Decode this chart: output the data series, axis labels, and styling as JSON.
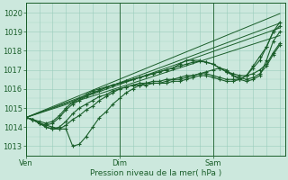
{
  "xlabel": "Pression niveau de la mer( hPa )",
  "bg_color": "#cce8dd",
  "grid_color": "#99ccbb",
  "line_color": "#1a5e2a",
  "ylim": [
    1012.5,
    1020.5
  ],
  "xtick_labels": [
    "Ven",
    "Dim",
    "Sam"
  ],
  "xtick_positions": [
    0,
    56,
    112
  ],
  "xlim": [
    0,
    155
  ],
  "yticks": [
    1013,
    1014,
    1015,
    1016,
    1017,
    1018,
    1019,
    1020
  ],
  "series": [
    {
      "x": [
        0,
        4,
        8,
        12,
        16,
        20,
        24,
        28,
        32,
        36,
        40,
        44,
        48,
        52,
        56,
        60,
        64,
        68,
        72,
        76,
        80,
        84,
        88,
        92,
        96,
        100,
        104,
        108,
        112,
        116,
        120,
        124,
        128,
        132,
        136,
        140,
        144,
        148,
        152
      ],
      "y": [
        1014.5,
        1014.4,
        1014.2,
        1014.1,
        1014.0,
        1013.9,
        1013.9,
        1013.0,
        1013.1,
        1013.5,
        1014.0,
        1014.5,
        1014.8,
        1015.2,
        1015.5,
        1015.8,
        1016.0,
        1016.2,
        1016.3,
        1016.4,
        1016.4,
        1016.5,
        1016.5,
        1016.5,
        1016.6,
        1016.7,
        1016.8,
        1016.9,
        1017.0,
        1017.1,
        1017.0,
        1016.7,
        1016.5,
        1016.4,
        1016.5,
        1016.7,
        1017.5,
        1018.5,
        1019.0
      ]
    },
    {
      "x": [
        0,
        4,
        8,
        12,
        16,
        20,
        24,
        28,
        32,
        36,
        40,
        44,
        48,
        52,
        56,
        60,
        64,
        68,
        72,
        76,
        80,
        84,
        88,
        92,
        96,
        100,
        104,
        108,
        112,
        116,
        120,
        124,
        128,
        132,
        136,
        140,
        144,
        148,
        152
      ],
      "y": [
        1014.5,
        1014.4,
        1014.2,
        1014.0,
        1013.9,
        1013.9,
        1014.1,
        1014.4,
        1014.6,
        1014.9,
        1015.1,
        1015.4,
        1015.6,
        1015.8,
        1016.0,
        1016.1,
        1016.2,
        1016.3,
        1016.3,
        1016.3,
        1016.3,
        1016.3,
        1016.4,
        1016.4,
        1016.5,
        1016.6,
        1016.7,
        1016.7,
        1016.6,
        1016.5,
        1016.4,
        1016.4,
        1016.5,
        1016.7,
        1017.1,
        1017.5,
        1018.2,
        1019.0,
        1019.5
      ]
    },
    {
      "x": [
        0,
        4,
        8,
        12,
        16,
        20,
        24,
        28,
        32,
        36,
        40,
        44,
        48,
        52,
        56,
        60,
        64,
        68,
        72,
        76,
        80,
        84,
        88,
        92,
        96,
        100,
        104,
        108,
        112,
        116,
        120,
        124,
        128,
        132,
        136,
        140,
        144,
        148,
        152
      ],
      "y": [
        1014.5,
        1014.4,
        1014.2,
        1014.0,
        1013.9,
        1014.0,
        1014.3,
        1014.7,
        1015.0,
        1015.2,
        1015.4,
        1015.6,
        1015.7,
        1015.9,
        1016.0,
        1016.1,
        1016.2,
        1016.2,
        1016.2,
        1016.3,
        1016.3,
        1016.4,
        1016.5,
        1016.6,
        1016.7,
        1016.7,
        1016.8,
        1016.8,
        1016.7,
        1016.6,
        1016.5,
        1016.5,
        1016.5,
        1016.7,
        1017.2,
        1017.7,
        1018.2,
        1019.0,
        1019.3
      ]
    },
    {
      "x": [
        0,
        4,
        8,
        12,
        16,
        20,
        24,
        28,
        32,
        36,
        40,
        44,
        48,
        52,
        56,
        60,
        64,
        68,
        72,
        76,
        80,
        84,
        88,
        92,
        96,
        100,
        104,
        108,
        112,
        116,
        120,
        124,
        128,
        132,
        136,
        140,
        144,
        148,
        152
      ],
      "y": [
        1014.5,
        1014.4,
        1014.2,
        1014.1,
        1014.2,
        1014.5,
        1014.9,
        1015.2,
        1015.4,
        1015.6,
        1015.8,
        1015.9,
        1016.1,
        1016.2,
        1016.3,
        1016.4,
        1016.5,
        1016.6,
        1016.7,
        1016.8,
        1016.9,
        1017.0,
        1017.1,
        1017.3,
        1017.5,
        1017.5,
        1017.5,
        1017.4,
        1017.3,
        1017.1,
        1016.9,
        1016.7,
        1016.6,
        1016.5,
        1016.6,
        1016.8,
        1017.2,
        1017.8,
        1018.3
      ]
    },
    {
      "x": [
        0,
        4,
        8,
        12,
        16,
        20,
        24,
        28,
        32,
        36,
        40,
        44,
        48,
        52,
        56,
        60,
        64,
        68,
        72,
        76,
        80,
        84,
        88,
        92,
        96,
        100,
        104,
        108,
        112,
        116,
        120,
        124,
        128,
        132,
        136,
        140,
        144,
        148,
        152
      ],
      "y": [
        1014.5,
        1014.4,
        1014.3,
        1014.2,
        1014.3,
        1014.6,
        1015.0,
        1015.3,
        1015.5,
        1015.7,
        1015.9,
        1016.0,
        1016.1,
        1016.2,
        1016.3,
        1016.4,
        1016.5,
        1016.6,
        1016.7,
        1016.8,
        1016.9,
        1017.0,
        1017.1,
        1017.2,
        1017.3,
        1017.4,
        1017.45,
        1017.4,
        1017.3,
        1017.1,
        1016.9,
        1016.8,
        1016.7,
        1016.7,
        1016.8,
        1017.0,
        1017.3,
        1017.9,
        1018.4
      ]
    }
  ],
  "extra_lines": [
    {
      "x0": 0,
      "y0": 1014.5,
      "x1": 152,
      "y1": 1019.95
    },
    {
      "x0": 0,
      "y0": 1014.5,
      "x1": 152,
      "y1": 1018.8
    },
    {
      "x0": 0,
      "y0": 1014.5,
      "x1": 152,
      "y1": 1019.45
    },
    {
      "x0": 0,
      "y0": 1014.5,
      "x1": 152,
      "y1": 1019.2
    }
  ]
}
